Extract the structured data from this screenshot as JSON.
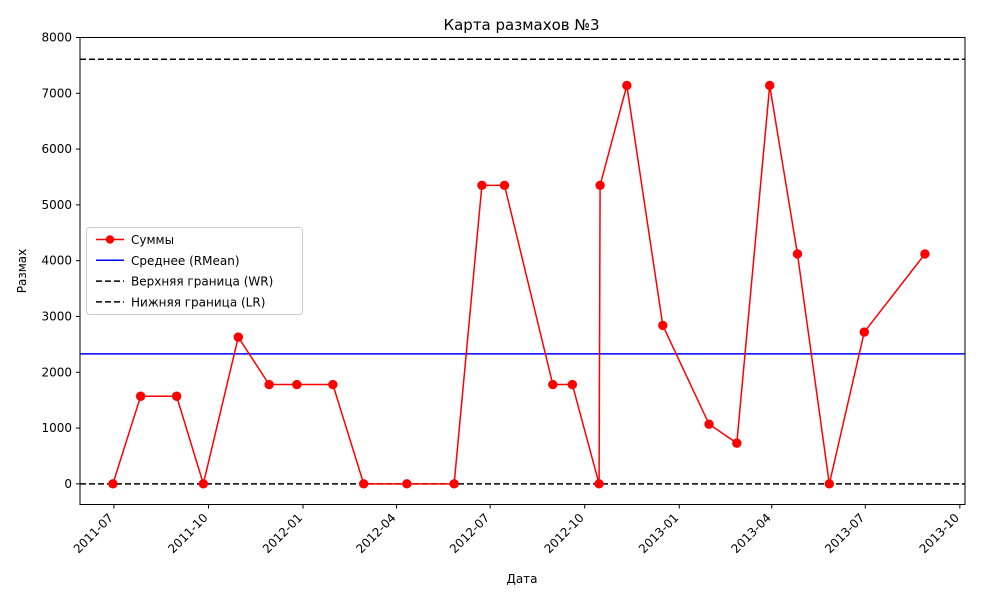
{
  "chart_data": {
    "type": "line",
    "title": "Карта размахов №3",
    "xlabel": "Дата",
    "ylabel": "Размах",
    "ylim": [
      -370,
      8000
    ],
    "xlim": [
      "2011-05-29",
      "2013-10-06"
    ],
    "y_ticks": [
      0,
      1000,
      2000,
      3000,
      4000,
      5000,
      6000,
      7000,
      8000
    ],
    "x_ticks": [
      "2011-07",
      "2011-10",
      "2012-01",
      "2012-04",
      "2012-07",
      "2012-10",
      "2013-01",
      "2013-04",
      "2013-07",
      "2013-10"
    ],
    "grid": false,
    "legend_position": "center-left",
    "series": [
      {
        "name": "Суммы",
        "color": "#ff0000",
        "marker": "circle",
        "x": [
          "2011-06-30",
          "2011-07-27",
          "2011-08-31",
          "2011-09-26",
          "2011-10-30",
          "2011-11-29",
          "2011-12-26",
          "2012-01-30",
          "2012-02-29",
          "2012-04-11",
          "2012-05-27",
          "2012-06-23",
          "2012-07-15",
          "2012-08-31",
          "2012-09-19",
          "2012-10-15",
          "2012-10-16",
          "2012-11-11",
          "2012-12-16",
          "2013-01-30",
          "2013-02-26",
          "2013-03-30",
          "2013-04-26",
          "2013-05-27",
          "2013-06-30",
          "2013-08-28"
        ],
        "values": [
          0,
          1570,
          1570,
          0,
          2630,
          1780,
          1780,
          1780,
          0,
          0,
          0,
          5350,
          5350,
          1780,
          1780,
          0,
          5350,
          7140,
          2840,
          1070,
          730,
          7140,
          4120,
          0,
          2720,
          4120
        ]
      },
      {
        "name": "Среднее (RMean)",
        "color": "#0000ff",
        "style": "solid",
        "value": 2330
      },
      {
        "name": "Верхняя граница (WR)",
        "color": "#000000",
        "style": "dashed",
        "value": 7610
      },
      {
        "name": "Нижняя граница (LR)",
        "color": "#000000",
        "style": "dashed",
        "value": 0
      }
    ]
  }
}
